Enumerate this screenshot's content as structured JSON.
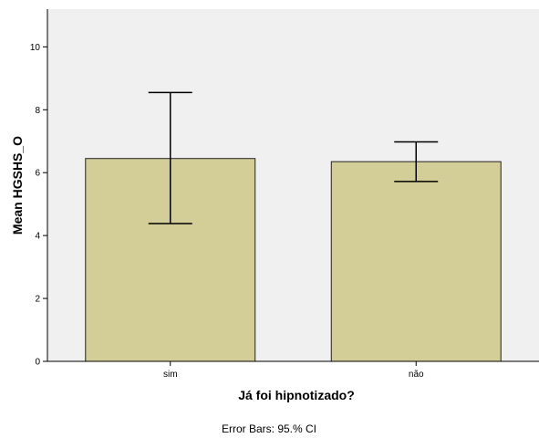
{
  "chart_data": {
    "type": "bar",
    "categories": [
      "sim",
      "não"
    ],
    "values": [
      6.45,
      6.35
    ],
    "error_bars": {
      "type": "95.% CI",
      "lower": [
        4.38,
        5.72
      ],
      "upper": [
        8.55,
        6.98
      ]
    },
    "xlabel": "Já foi hipnotizado?",
    "ylabel": "Mean HGSHS_O",
    "ylim": [
      0,
      11.2
    ],
    "yticks": [
      0,
      2,
      4,
      6,
      8,
      10
    ],
    "grid": false,
    "legend": "none",
    "footnote": "Error Bars: 95.% CI",
    "colors": {
      "bar_fill": "#d3ce97",
      "bar_stroke": "#222222",
      "plot_background": "#f0f0f0",
      "axis": "#000000"
    }
  }
}
